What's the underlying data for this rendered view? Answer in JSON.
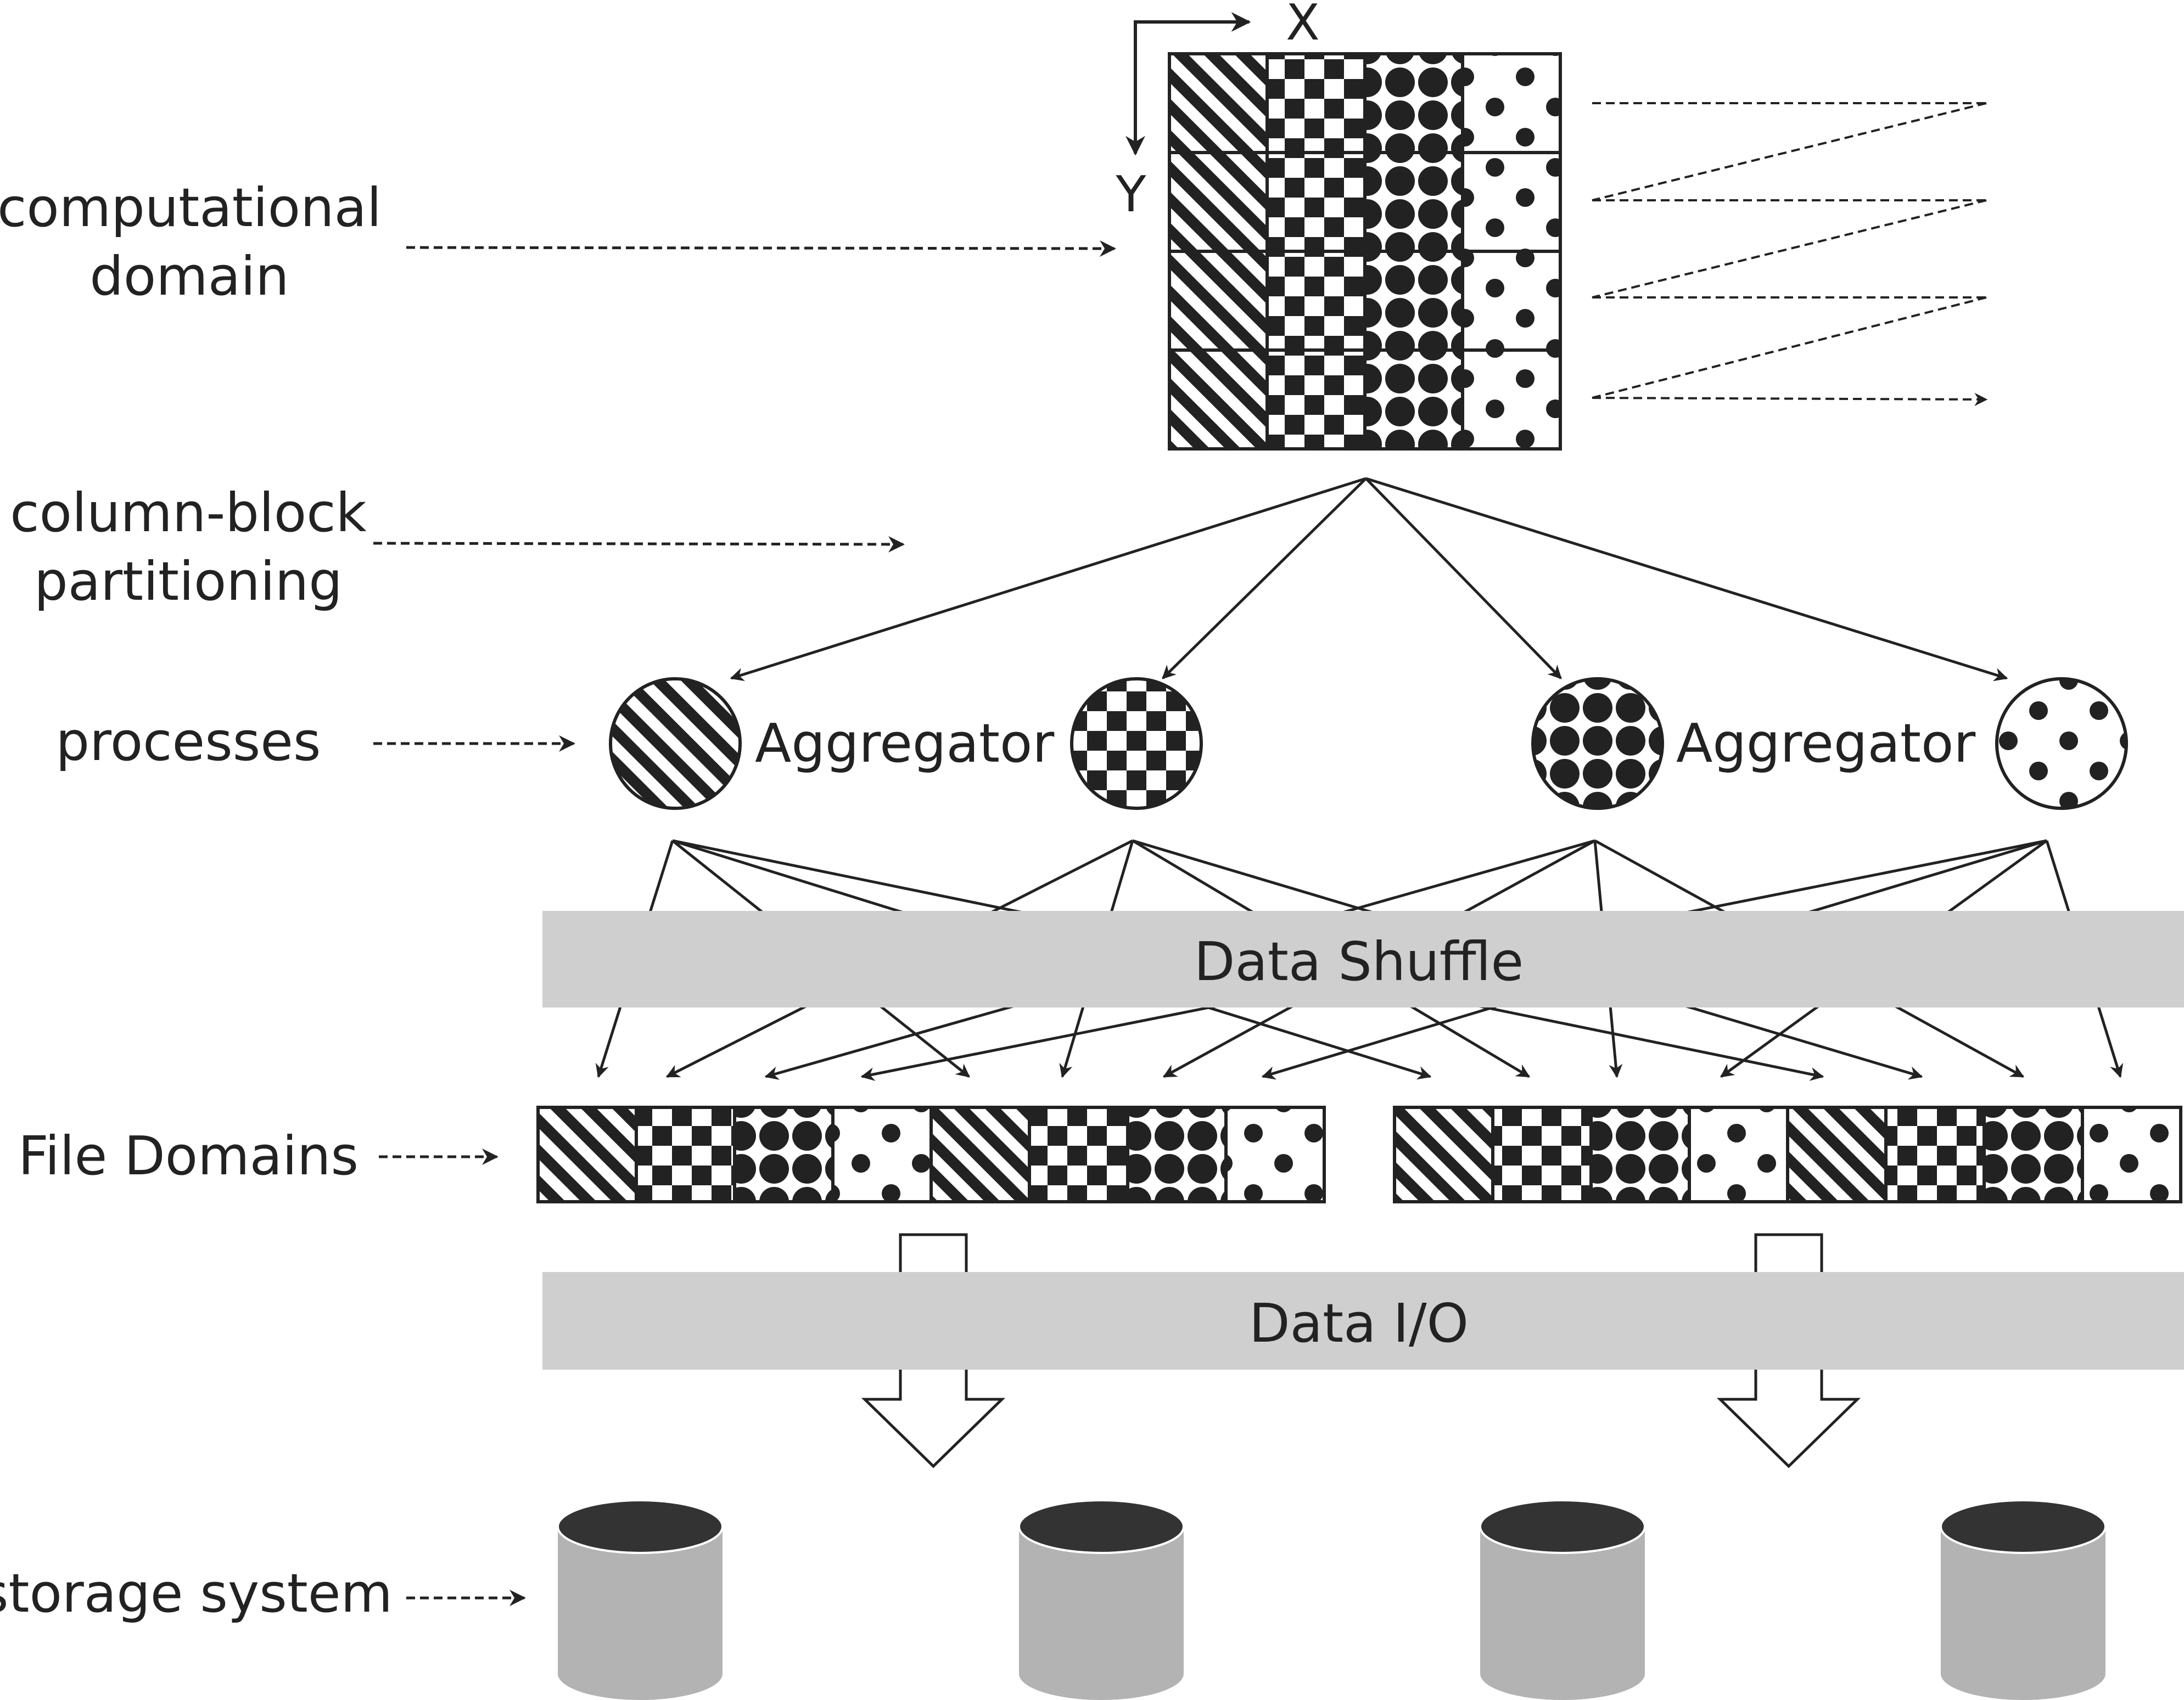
{
  "labels": {
    "computational": "computational",
    "domain": "domain",
    "column_block": "column-block",
    "partitioning": "partitioning",
    "processes": "processes",
    "file_domains": "File Domains",
    "storage_system": "storage system"
  },
  "axes": {
    "x": "X",
    "y": "Y"
  },
  "aggregators": [
    "Aggregator",
    "Aggregator"
  ],
  "bars": {
    "shuffle": "Data Shuffle",
    "io": "Data I/O"
  },
  "grid": {
    "rows": 4,
    "cols": 4,
    "column_patterns": [
      "stripes",
      "checker",
      "dots-dense",
      "dots-sparse"
    ]
  },
  "process_patterns": [
    "stripes",
    "checker",
    "dots-dense",
    "dots-sparse"
  ],
  "file_domain_pattern_sequence": [
    "stripes",
    "checker",
    "dots-dense",
    "dots-sparse",
    "stripes",
    "checker",
    "dots-dense",
    "dots-sparse"
  ],
  "storage_units": 4,
  "colors": {
    "ink": "#222222",
    "bar_fill": "#cfcfcf",
    "cylinder_body": "#b3b3b3",
    "cylinder_top": "#333333"
  }
}
